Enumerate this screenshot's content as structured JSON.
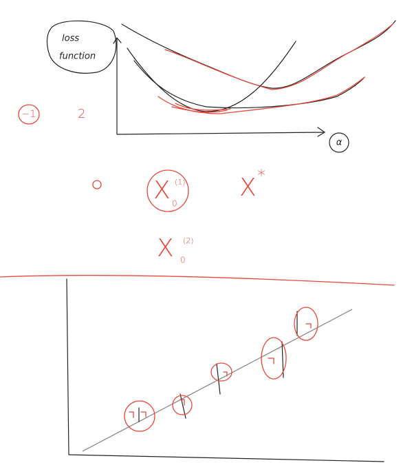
{
  "annotations": {
    "loss_line1": "loss",
    "loss_line2": "function",
    "minus_one": "−1",
    "two": "2",
    "alpha": "α",
    "x1_base": "X",
    "x1_sub": "0",
    "x1_sup": "(1)",
    "xstar_base": "X",
    "xstar_sup": "*",
    "x2_base": "X",
    "x2_sub": "0",
    "x2_sup": "(2)"
  }
}
